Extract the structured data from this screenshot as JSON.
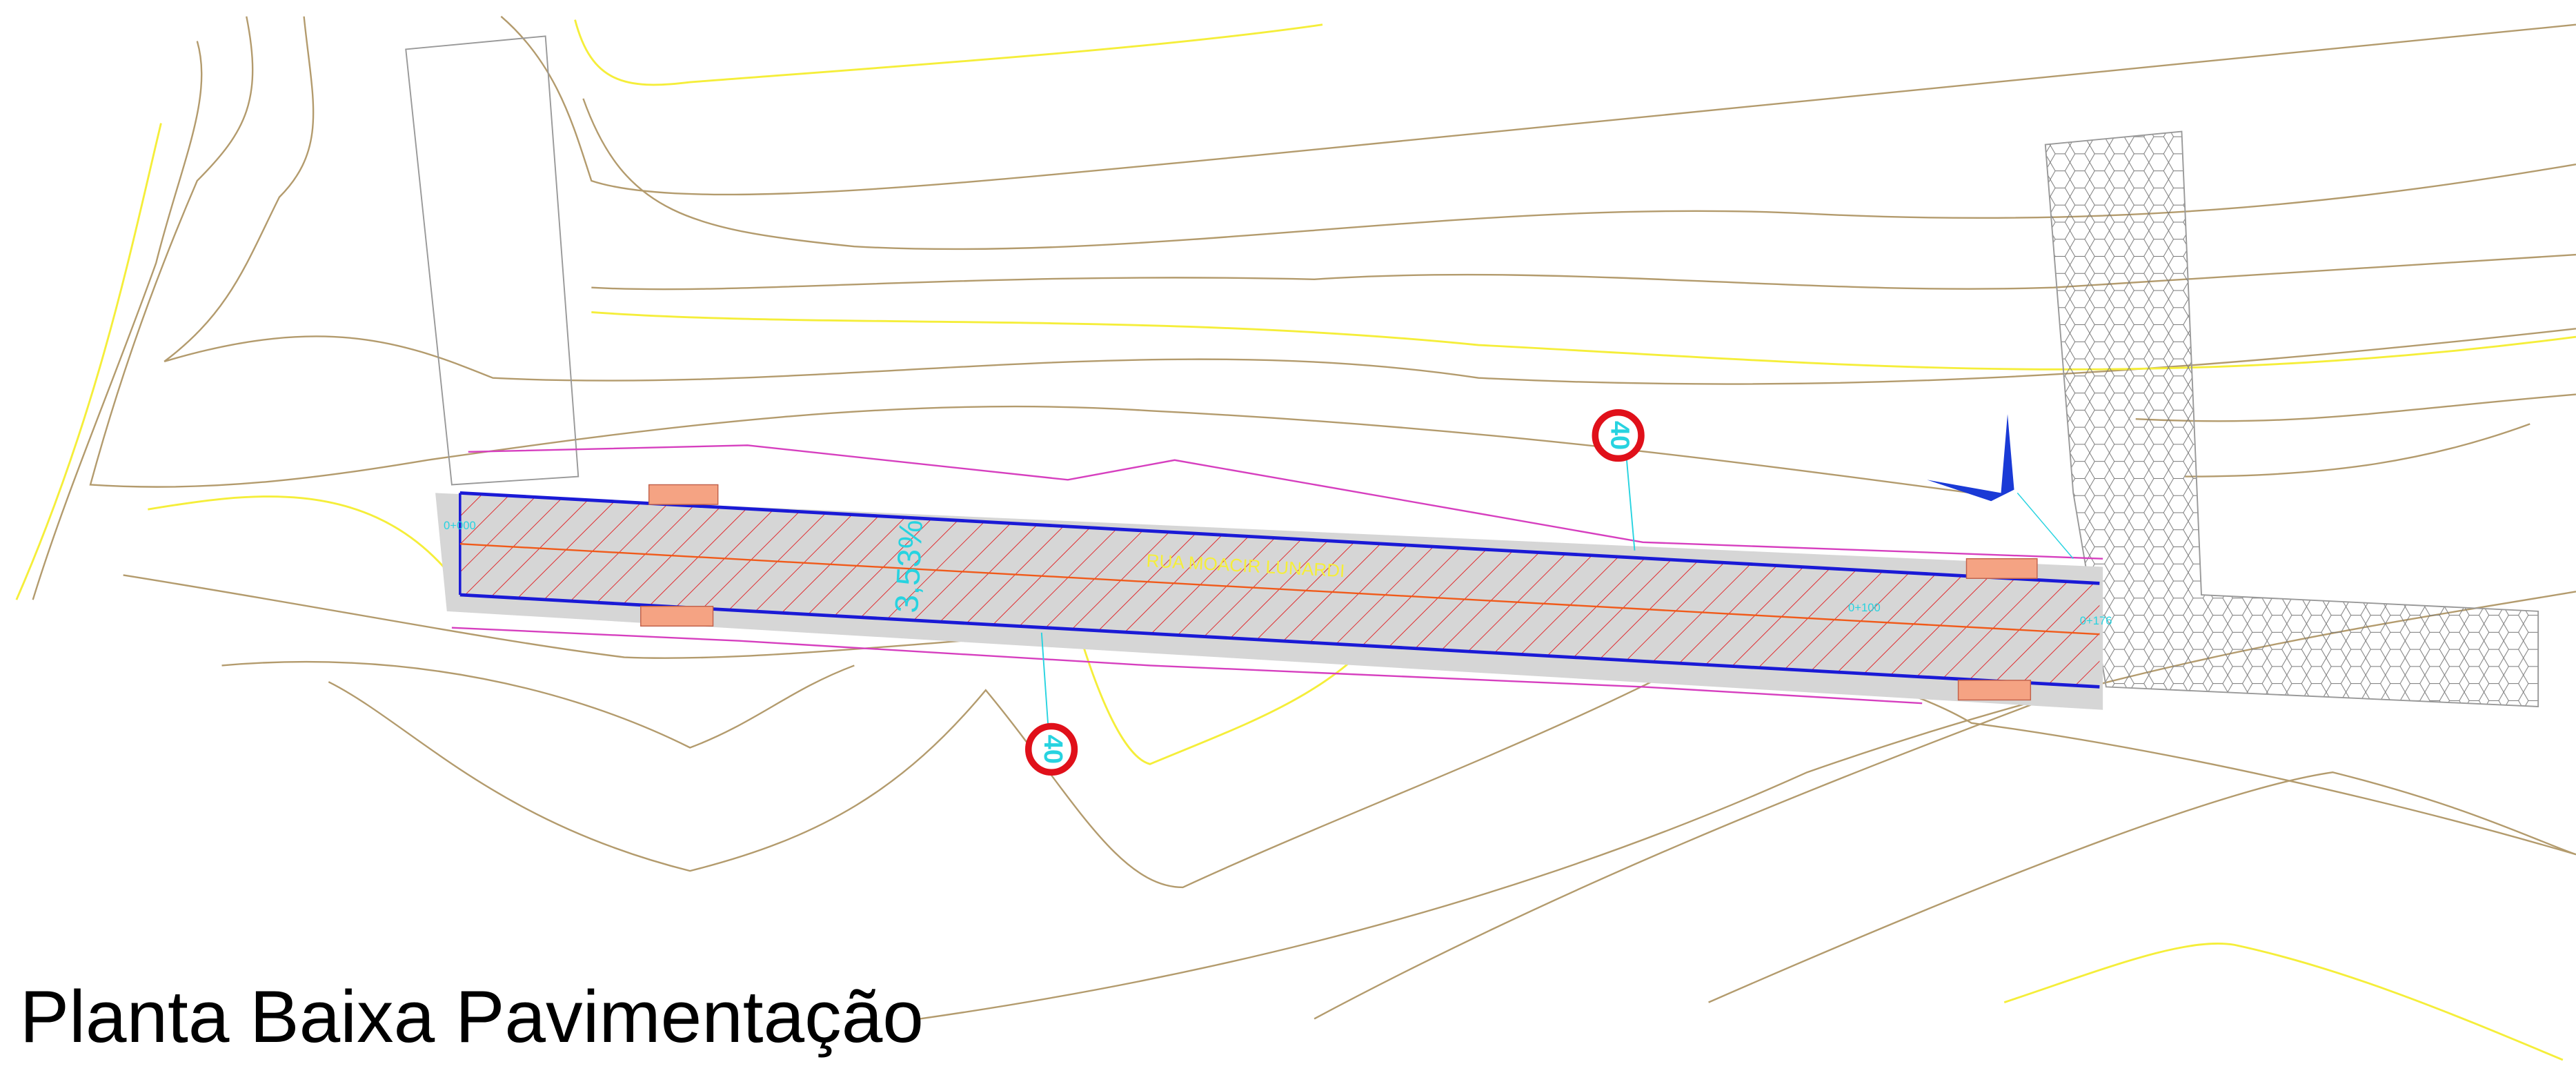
{
  "title": "Planta Baixa Pavimentação",
  "road": {
    "name": "RUA MOACIR LUNARDI",
    "slope": "3,53%",
    "stations": [
      "0+000",
      "0+100",
      "0+176"
    ]
  },
  "signs": [
    {
      "label": "40"
    },
    {
      "label": "40"
    }
  ]
}
